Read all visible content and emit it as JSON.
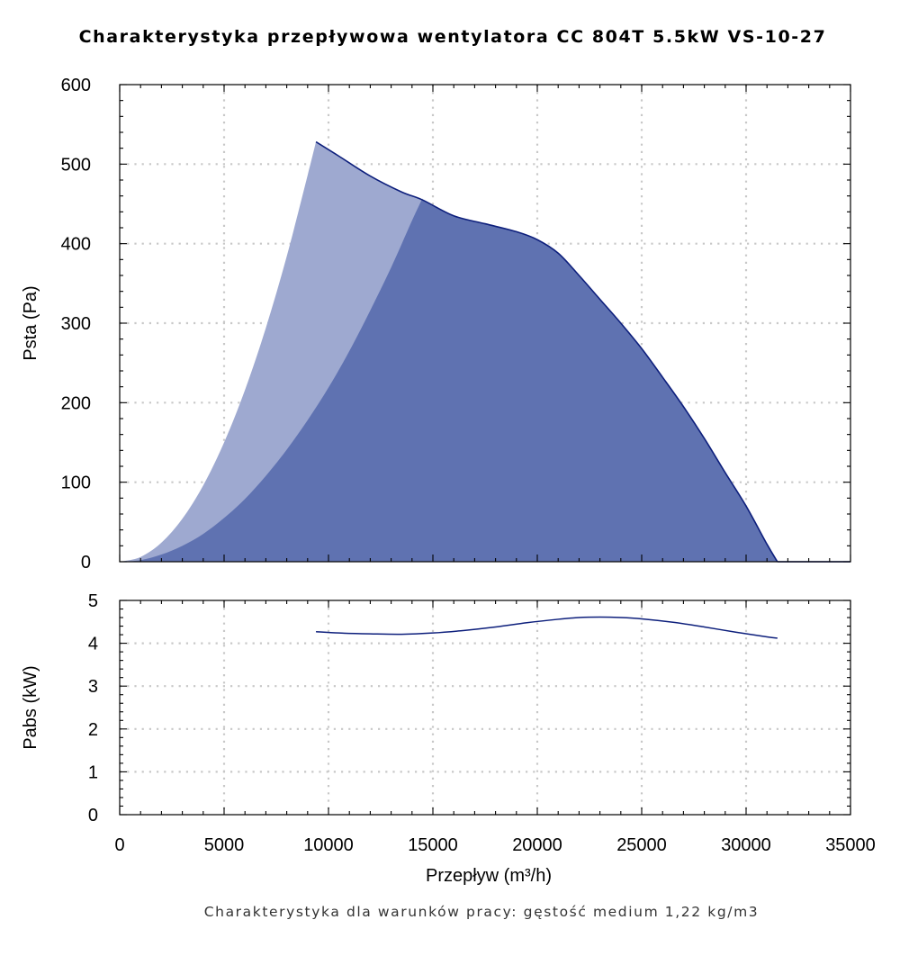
{
  "title": "Charakterystyka przepływowa wentylatora CC 804T 5.5kW VS-10-27",
  "footnote": "Charakterystyka dla warunków pracy: gęstość medium 1,22 kg/m3",
  "colors": {
    "light_area": "#9ea9d0",
    "dark_area": "#5f72b1",
    "curve": "#0d1f7c",
    "grid": "#c8c8c8"
  },
  "chart_data": [
    {
      "type": "area",
      "xlabel": "Przepływ (m³/h)",
      "ylabel": "Psta (Pa)",
      "xlim": [
        0,
        35000
      ],
      "ylim": [
        0,
        600
      ],
      "x_ticks": [
        "0",
        "5000",
        "10000",
        "15000",
        "20000",
        "25000",
        "30000",
        "35000"
      ],
      "y_ticks": [
        "0",
        "100",
        "200",
        "300",
        "400",
        "500",
        "600"
      ],
      "grid": true,
      "series": [
        {
          "role": "fan curve",
          "x": [
            9400,
            10500,
            12000,
            13500,
            14500,
            16000,
            17500,
            19000,
            20000,
            21000,
            22000,
            23000,
            24000,
            25000,
            26000,
            27000,
            28000,
            29000,
            30000,
            31000,
            31500
          ],
          "y": [
            528,
            510,
            485,
            465,
            455,
            435,
            425,
            415,
            405,
            388,
            360,
            330,
            300,
            268,
            232,
            195,
            155,
            112,
            70,
            22,
            0
          ]
        },
        {
          "role": "light region lower boundary",
          "x": [
            0,
            1000,
            2000,
            3000,
            4000,
            5000,
            6000,
            7000,
            8000,
            9000,
            9400
          ],
          "y": [
            0,
            6,
            24,
            54,
            96,
            150,
            216,
            294,
            384,
            486,
            528
          ]
        },
        {
          "role": "dark region lower boundary",
          "x": [
            0,
            1000,
            2000,
            3000,
            4000,
            5000,
            6000,
            7000,
            8000,
            9000,
            10000,
            11000,
            12000,
            13000,
            14000,
            14500
          ],
          "y": [
            0,
            2,
            9,
            20,
            35,
            55,
            79,
            108,
            141,
            178,
            219,
            265,
            316,
            370,
            429,
            457
          ]
        }
      ]
    },
    {
      "type": "line",
      "xlabel": "",
      "ylabel": "Pabs (kW)",
      "xlim": [
        0,
        35000
      ],
      "ylim": [
        0,
        5
      ],
      "y_ticks": [
        "0",
        "1",
        "2",
        "3",
        "4",
        "5"
      ],
      "grid": true,
      "series": [
        {
          "x": [
            9400,
            10500,
            12000,
            13500,
            15000,
            16500,
            18000,
            19500,
            21000,
            22000,
            23000,
            24000,
            25000,
            26500,
            28000,
            29500,
            31000,
            31500
          ],
          "y": [
            4.27,
            4.24,
            4.22,
            4.21,
            4.24,
            4.3,
            4.38,
            4.48,
            4.56,
            4.6,
            4.61,
            4.6,
            4.57,
            4.49,
            4.38,
            4.26,
            4.15,
            4.12
          ]
        }
      ]
    }
  ]
}
